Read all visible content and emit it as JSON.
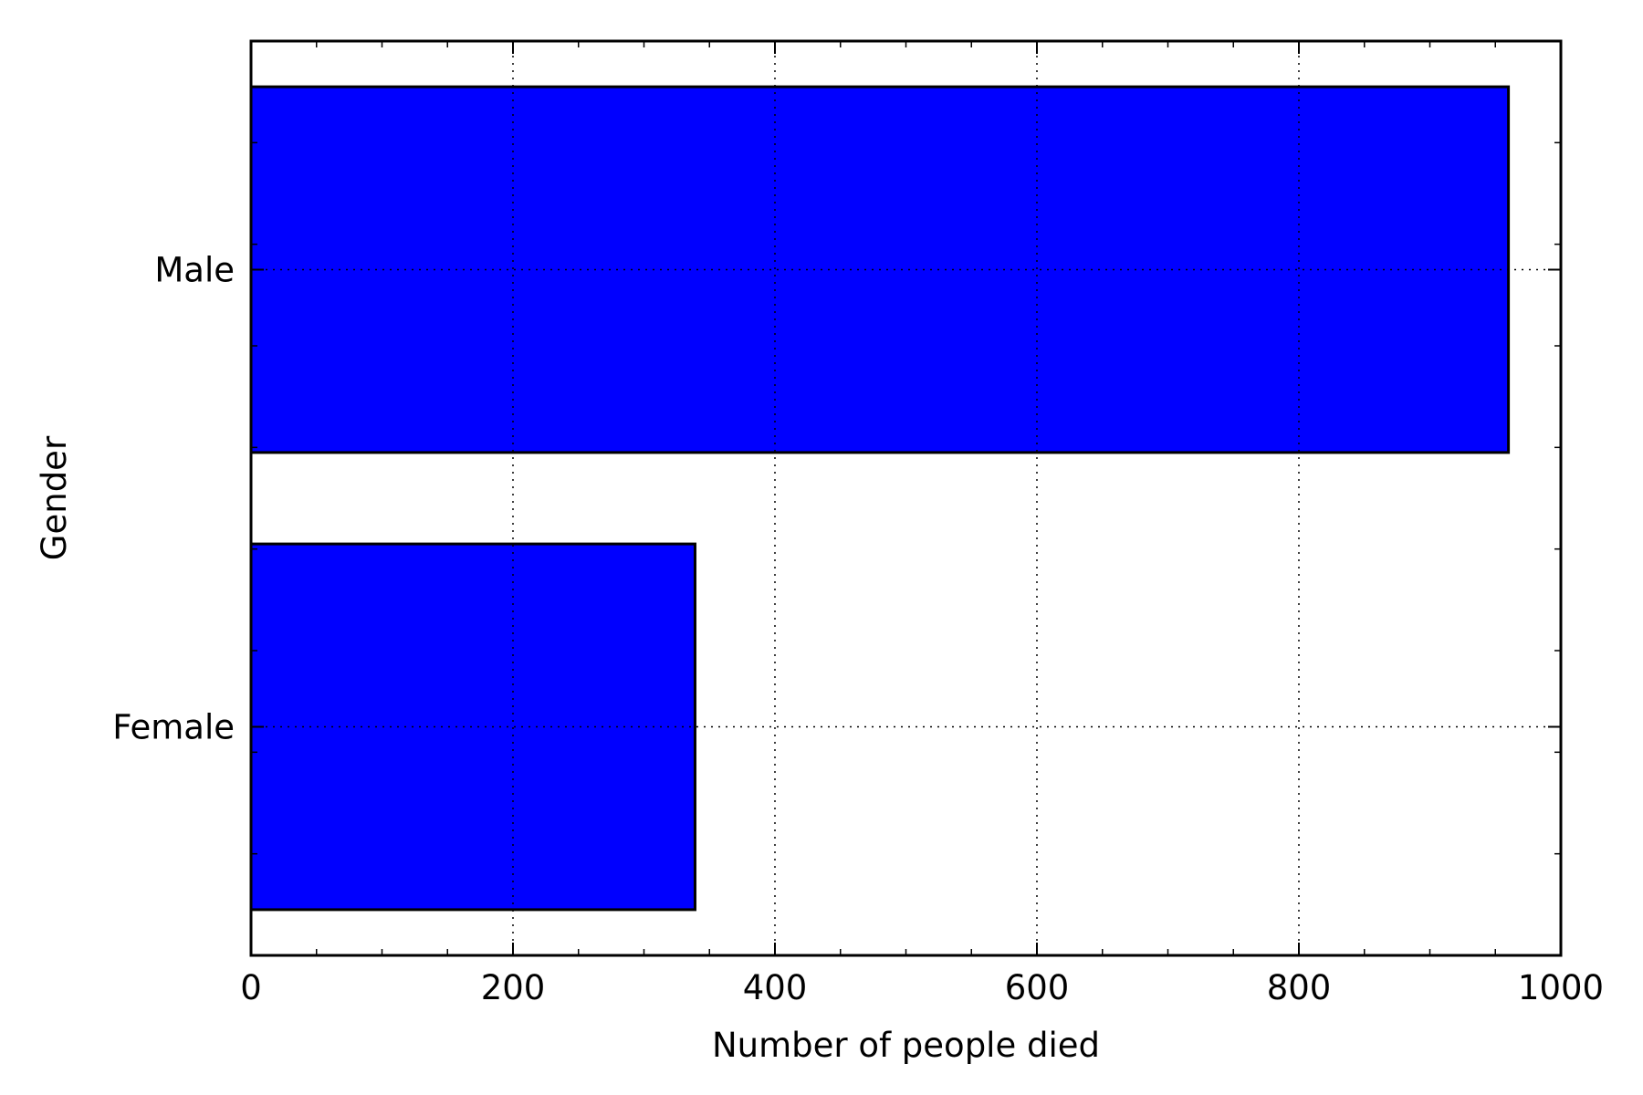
{
  "chart_data": {
    "type": "bar",
    "orientation": "horizontal",
    "categories": [
      "Male",
      "Female"
    ],
    "values": [
      960,
      339
    ],
    "xlabel": "Number of people died",
    "ylabel": "Gender",
    "xlim": [
      0,
      1000
    ],
    "xticks": [
      0,
      200,
      400,
      600,
      800,
      1000
    ],
    "x_tick_labels": [
      "0",
      "200",
      "400",
      "600",
      "800",
      "1000"
    ],
    "grid": true,
    "bar_color": "#0000ff"
  }
}
